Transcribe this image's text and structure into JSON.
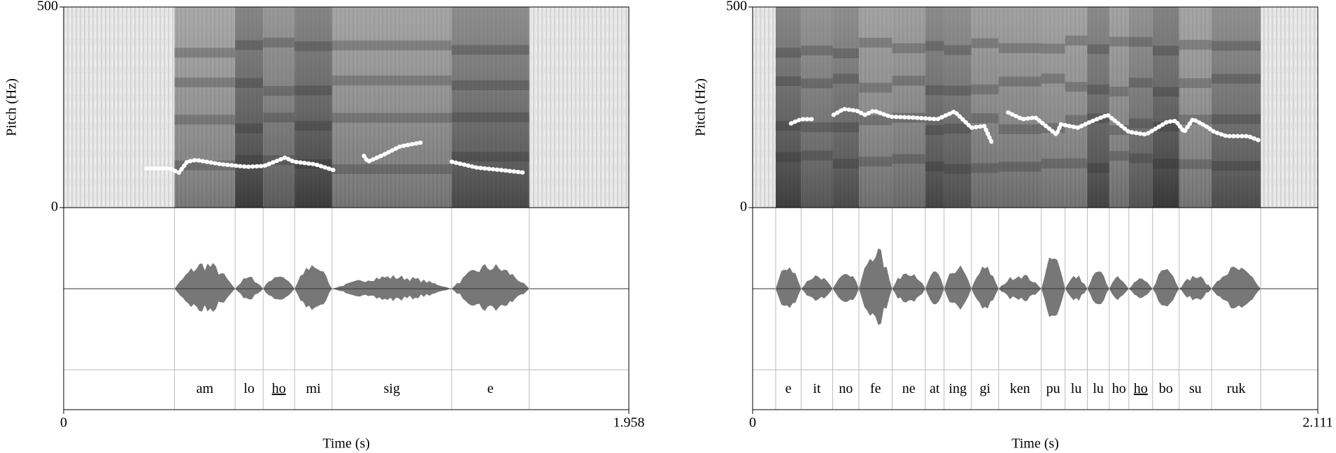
{
  "chart_data": [
    {
      "type": "pitch",
      "x_label": "Time (s)",
      "y_label": "Pitch (Hz)",
      "xlim": [
        0,
        1.958
      ],
      "xticks": [
        0,
        1.958
      ],
      "ylim": [
        0,
        500
      ],
      "yticks": [
        0,
        500
      ],
      "intervals": {
        "boundaries": [
          0.384,
          0.594,
          0.691,
          0.8,
          0.93,
          1.344,
          1.613
        ],
        "labels": [
          "am",
          "lo",
          "ho",
          "mi",
          "sig",
          "e"
        ]
      },
      "underlined": [
        2
      ],
      "color": "#ffffff",
      "pitch": {
        "x": [
          0.286,
          0.369,
          0.399,
          0.428,
          0.458,
          0.547,
          0.635,
          0.694,
          0.768,
          0.797,
          0.871,
          0.936,
          null,
          1.04,
          1.054,
          1.107,
          1.166,
          1.246,
          null,
          1.344,
          1.432,
          1.521,
          1.598
        ],
        "values": [
          97.5,
          97.5,
          86.9,
          114.4,
          118.7,
          108.0,
          101.7,
          103.8,
          125.0,
          114.4,
          108.0,
          93.2,
          null,
          129.3,
          114.4,
          131.4,
          152.6,
          163.2,
          null,
          114.4,
          99.6,
          93.2,
          86.9
        ]
      }
    },
    {
      "type": "pitch",
      "x_label": "Time (s)",
      "y_label": "Pitch (Hz)",
      "xlim": [
        0,
        2.111
      ],
      "xticks": [
        0,
        2.111
      ],
      "ylim": [
        0,
        500
      ],
      "yticks": [
        0,
        500
      ],
      "intervals": {
        "boundaries": [
          0.086,
          0.181,
          0.299,
          0.397,
          0.521,
          0.645,
          0.715,
          0.817,
          0.919,
          1.078,
          1.167,
          1.25,
          1.332,
          1.405,
          1.494,
          1.593,
          1.714,
          1.898
        ],
        "labels": [
          "e",
          "it",
          "no",
          "fe",
          "ne",
          "at",
          "ing",
          "gi",
          "ken",
          "pu",
          "lu",
          "lu",
          "ho",
          "ho",
          "bo",
          "su",
          "ruk"
        ]
      },
      "underlined": [
        13
      ],
      "color": "#ffffff",
      "pitch": {
        "x": [
          0.143,
          0.181,
          0.229,
          null,
          0.302,
          0.34,
          0.388,
          0.42,
          0.452,
          0.515,
          0.595,
          0.69,
          0.754,
          0.817,
          0.865,
          0.897,
          null,
          0.954,
          1.008,
          1.056,
          1.135,
          1.151,
          1.215,
          1.262,
          1.326,
          1.405,
          1.469,
          1.549,
          1.58,
          1.612,
          1.644,
          1.692,
          1.724,
          1.771,
          1.851,
          1.892
        ],
        "values": [
          209.8,
          220.4,
          220.4,
          null,
          231.0,
          245.8,
          241.6,
          231.0,
          241.6,
          226.7,
          224.6,
          220.4,
          239.5,
          199.2,
          203.4,
          156.8,
          null,
          237.3,
          220.4,
          224.6,
          182.2,
          207.7,
          199.2,
          214.0,
          231.0,
          188.6,
          182.2,
          214.0,
          216.1,
          188.6,
          220.4,
          203.4,
          188.6,
          178.0,
          178.0,
          167.4
        ]
      }
    }
  ]
}
